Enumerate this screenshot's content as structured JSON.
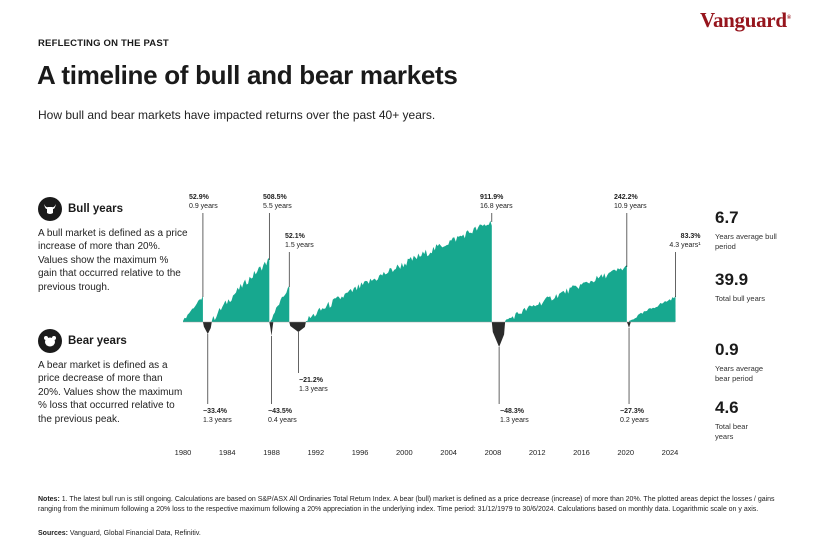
{
  "brand": {
    "logo": "Vanguard"
  },
  "header": {
    "eyebrow": "REFLECTING ON THE PAST",
    "title": "A timeline of bull and bear markets",
    "subtitle": "How bull and bear markets have impacted returns over the past 40+ years."
  },
  "bull": {
    "title": "Bull years",
    "description": "A bull market is defined as a price increase of more than 20%. Values show the maximum % gain that occurred relative to the previous trough.",
    "icon": "bull-icon"
  },
  "bear": {
    "title": "Bear years",
    "description": "A bear market is defined as a price decrease of more than 20%. Values show the maximum % loss that occurred relative to the previous peak.",
    "icon": "bear-icon"
  },
  "stats": {
    "bull_avg_value": "6.7",
    "bull_avg_label": "Years average bull period",
    "bull_total_value": "39.9",
    "bull_total_label": "Total bull years",
    "bear_avg_value": "0.9",
    "bear_avg_label": "Years average bear period",
    "bear_total_value": "4.6",
    "bear_total_label": "Total bear years"
  },
  "chart_data": {
    "type": "area",
    "x_ticks": [
      "1980",
      "1984",
      "1988",
      "1992",
      "1996",
      "2000",
      "2004",
      "2008",
      "2012",
      "2016",
      "2020",
      "2024"
    ],
    "x_range": [
      1980,
      2024.5
    ],
    "bull_color": "#17a88f",
    "bear_color": "#2b2b2b",
    "bull_markets": [
      {
        "start": 1980.0,
        "end": 1981.8,
        "pct": "52.9%",
        "years": "0.9 years"
      },
      {
        "start": 1982.6,
        "end": 1987.8,
        "pct": "508.5%",
        "years": "5.5 years"
      },
      {
        "start": 1987.9,
        "end": 1989.6,
        "pct": "52.1%",
        "years": "1.5 years"
      },
      {
        "start": 1991.1,
        "end": 2007.9,
        "pct": "911.9%",
        "years": "16.8 years"
      },
      {
        "start": 2009.1,
        "end": 2020.1,
        "pct": "242.2%",
        "years": "10.9 years"
      },
      {
        "start": 2020.3,
        "end": 2024.5,
        "pct": "83.3%",
        "years": "4.3 years¹"
      }
    ],
    "bear_markets": [
      {
        "start": 1981.8,
        "end": 1982.6,
        "pct": "−33.4%",
        "years": "1.3 years"
      },
      {
        "start": 1987.8,
        "end": 1987.9,
        "pct": "−43.5%",
        "years": "0.4 years"
      },
      {
        "start": 1989.6,
        "end": 1991.1,
        "pct": "−21.2%",
        "years": "1.3 years"
      },
      {
        "start": 2007.9,
        "end": 2009.1,
        "pct": "−48.3%",
        "years": "1.3 years"
      },
      {
        "start": 2020.1,
        "end": 2020.3,
        "pct": "−27.3%",
        "years": "0.2 years"
      }
    ]
  },
  "notes": {
    "label": "Notes:",
    "text": " 1. The latest bull run is still ongoing. Calculations are based on S&P/ASX All Ordinaries Total Return Index. A bear (bull) market is defined as a price decrease (increase) of more than 20%. The plotted areas depict the losses / gains ranging from the minimum following a 20% loss to the respective maximum following a 20% appreciation in the underlying index. Time period: 31/12/1979 to 30/6/2024. Calculations based on monthly data. Logarithmic scale on y axis.",
    "sources_label": "Sources:",
    "sources_text": " Vanguard, Global Financial Data, Refinitiv."
  }
}
